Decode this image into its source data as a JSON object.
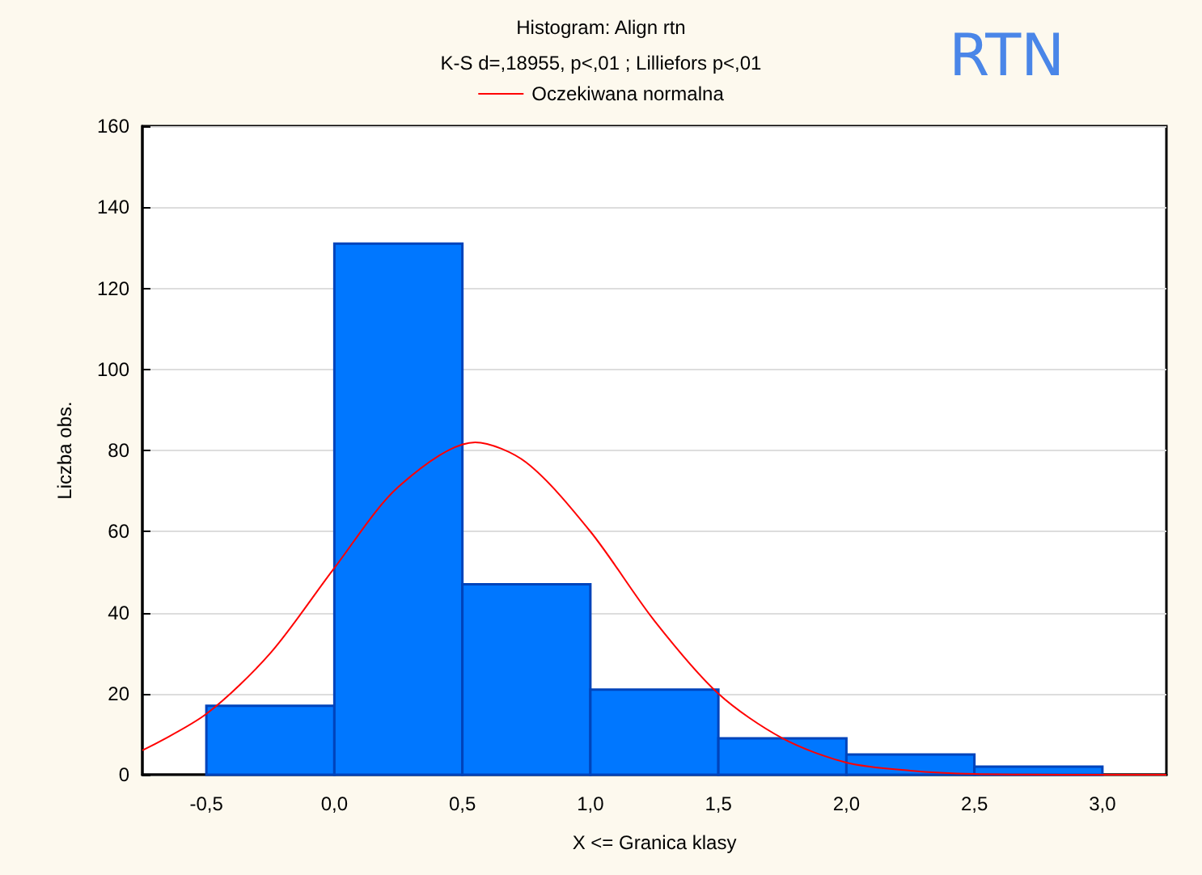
{
  "chart_data": {
    "type": "histogram",
    "title": "Histogram: Align rtn",
    "subtitle": "K-S d=,18955, p<,01 ; Lilliefors p<,01",
    "xlabel": "X <= Granica klasy",
    "ylabel": "Liczba obs.",
    "annotations": [
      "RTN"
    ],
    "bins": [
      -0.5,
      0,
      0.5,
      1,
      1.5,
      2,
      2.5,
      3
    ],
    "values": [
      17,
      131,
      47,
      21,
      9,
      5,
      2
    ],
    "color": "#0077ff",
    "series": [
      {
        "type": "line",
        "name": "Oczekiwana normalna",
        "color": "#ff0000",
        "x": [
          -0.75,
          -0.5,
          -0.25,
          0,
          0.25,
          0.55,
          0.75,
          1,
          1.25,
          1.5,
          1.75,
          2,
          2.25,
          2.5,
          3,
          3.25
        ],
        "values": [
          6,
          15,
          30,
          51,
          71,
          82,
          77,
          60,
          38,
          20,
          9,
          3,
          1,
          0.2,
          0,
          0
        ]
      }
    ],
    "xlim": [
      -0.75,
      3.25
    ],
    "xticks": [
      {
        "value": -0.5,
        "label": "-0,5"
      },
      {
        "value": 0,
        "label": "0,0"
      },
      {
        "value": 0.5,
        "label": "0,5"
      },
      {
        "value": 1,
        "label": "1,0"
      },
      {
        "value": 1.5,
        "label": "1,5"
      },
      {
        "value": 2,
        "label": "2,0"
      },
      {
        "value": 2.5,
        "label": "2,5"
      },
      {
        "value": 3,
        "label": "3,0"
      }
    ],
    "ylim": [
      0,
      160
    ],
    "yticks": [
      0,
      20,
      40,
      60,
      80,
      100,
      120,
      140,
      160
    ],
    "grid": "y",
    "legend": "top"
  }
}
